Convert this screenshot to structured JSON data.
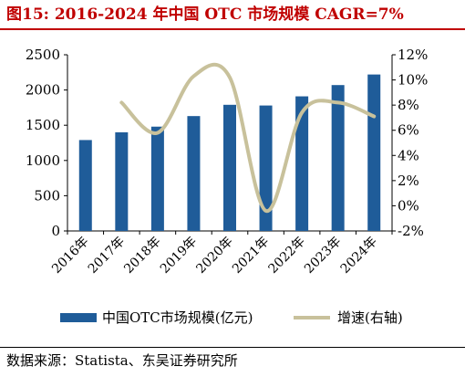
{
  "title": "图15:  2016-2024 年中国 OTC 市场规模 CAGR=7%",
  "source": "数据来源：Statista、东吴证券研究所",
  "chart_data": {
    "type": "bar+line",
    "categories": [
      "2016年",
      "2017年",
      "2018年",
      "2019年",
      "2020年",
      "2021年",
      "2022年",
      "2023年",
      "2024年"
    ],
    "series": [
      {
        "name": "中国OTC市场规模(亿元)",
        "type": "bar",
        "axis": "left",
        "values": [
          1290,
          1400,
          1480,
          1630,
          1790,
          1780,
          1910,
          2070,
          2220
        ],
        "color": "#1f5c99"
      },
      {
        "name": "增速(右轴)",
        "type": "line",
        "axis": "right",
        "values": [
          null,
          8.2,
          5.8,
          10.3,
          10.2,
          -0.4,
          7.4,
          8.2,
          7.1
        ],
        "color": "#c8c19b"
      }
    ],
    "y_left": {
      "min": 0,
      "max": 2500,
      "ticks": [
        "0",
        "500",
        "1000",
        "1500",
        "2000",
        "2500"
      ]
    },
    "y_right": {
      "min": -2,
      "max": 12,
      "ticks": [
        "-2%",
        "0%",
        "2%",
        "4%",
        "6%",
        "8%",
        "10%",
        "12%"
      ]
    },
    "legend_position": "bottom",
    "grid": false
  }
}
